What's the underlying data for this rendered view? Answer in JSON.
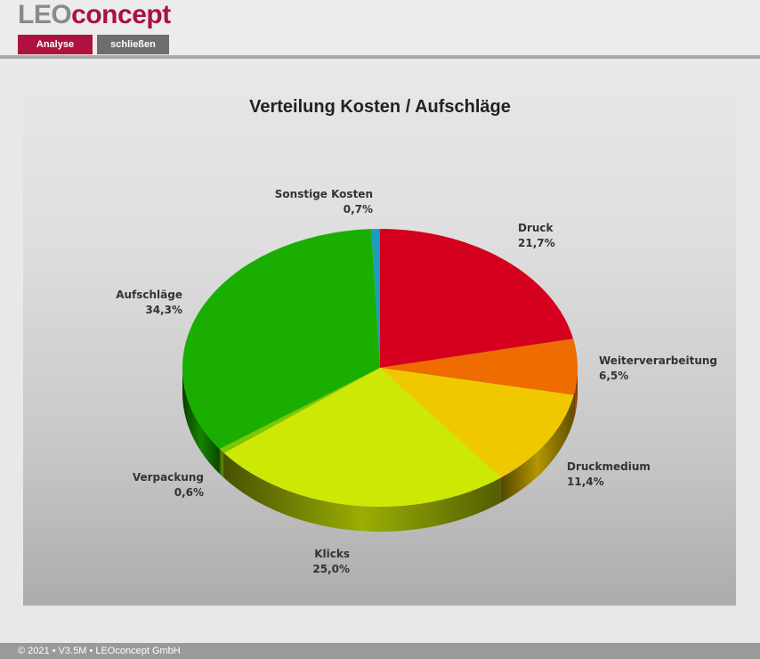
{
  "header": {
    "logo_part1": "LEO",
    "logo_part2": "concept",
    "analyse_label": "Analyse",
    "close_label": "schließen"
  },
  "footer": {
    "text": "© 2021 • V3.5M • LEOconcept GmbH"
  },
  "colors": {
    "brand": "#b0123f",
    "button_gray": "#6e6e6e"
  },
  "chart_data": {
    "type": "pie",
    "title": "Verteilung Kosten / Aufschläge",
    "slices": [
      {
        "label": "Druck",
        "value": 21.7,
        "display": "21,7%",
        "color": "#d4001e"
      },
      {
        "label": "Weiterverarbeitung",
        "value": 6.5,
        "display": "6,5%",
        "color": "#ee6c00"
      },
      {
        "label": "Druckmedium",
        "value": 11.4,
        "display": "11,4%",
        "color": "#f0c800"
      },
      {
        "label": "Klicks",
        "value": 25.0,
        "display": "25,0%",
        "color": "#cde805"
      },
      {
        "label": "Verpackung",
        "value": 0.6,
        "display": "0,6%",
        "color": "#7cc800"
      },
      {
        "label": "Aufschläge",
        "value": 34.3,
        "display": "34,3%",
        "color": "#1aae00"
      },
      {
        "label": "Sonstige Kosten",
        "value": 0.7,
        "display": "0,7%",
        "color": "#1a9ec0"
      }
    ]
  }
}
